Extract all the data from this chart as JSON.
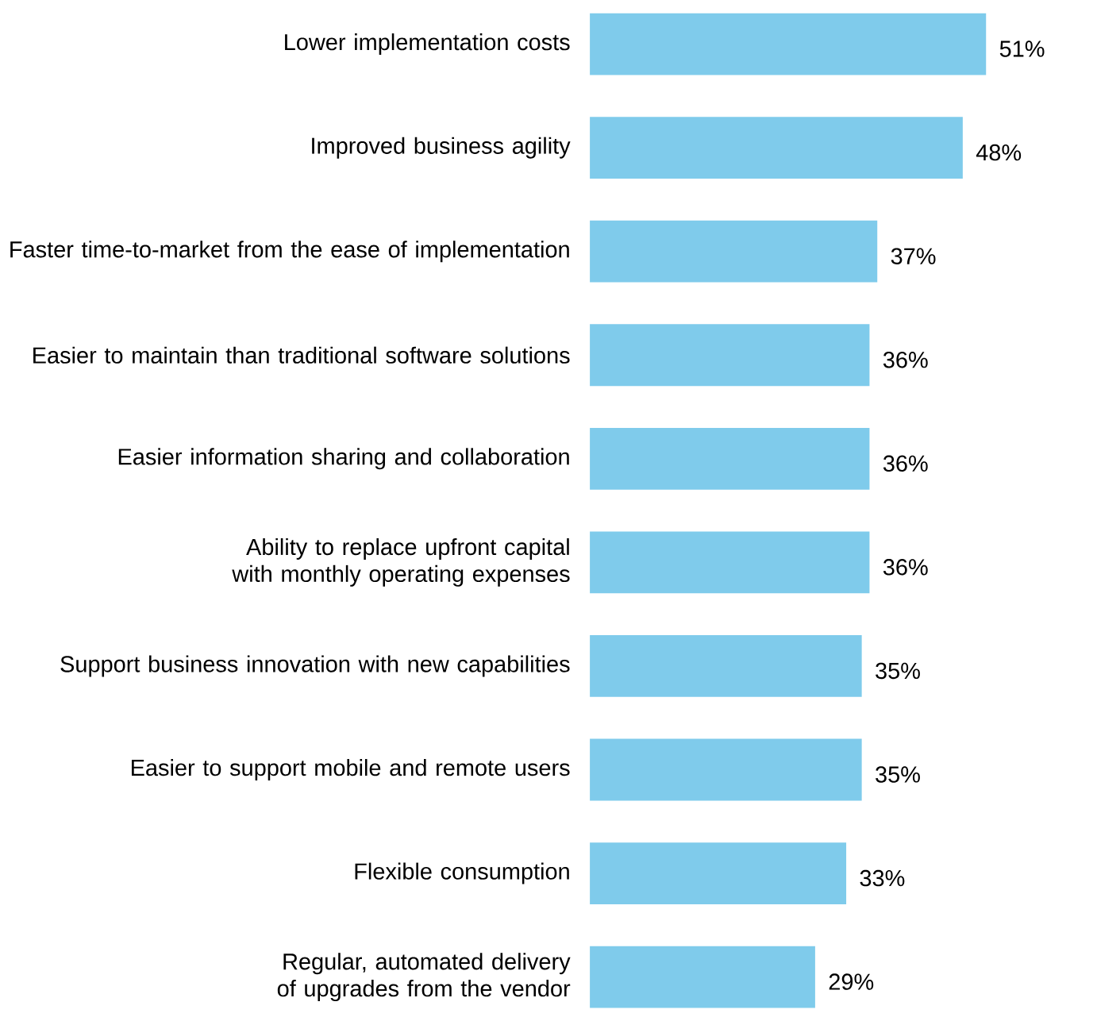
{
  "chart_data": {
    "type": "bar",
    "orientation": "horizontal",
    "color": "#7fcbeb",
    "categories": [
      "Lower implementation costs",
      "Improved business agility",
      "Faster time-to-market from the ease of implementation",
      "Easier to maintain than traditional software solutions",
      "Easier information sharing and collaboration",
      "Ability to replace upfront capital with monthly operating expenses",
      "Support business innovation with new capabilities",
      "Easier to support mobile and remote users",
      "Flexible consumption",
      "Regular, automated delivery of upgrades from the vendor"
    ],
    "values": [
      51,
      48,
      37,
      36,
      36,
      36,
      35,
      35,
      33,
      29
    ],
    "value_labels": [
      "51%",
      "48%",
      "37%",
      "36%",
      "36%",
      "36%",
      "35%",
      "35%",
      "33%",
      "29%"
    ]
  }
}
